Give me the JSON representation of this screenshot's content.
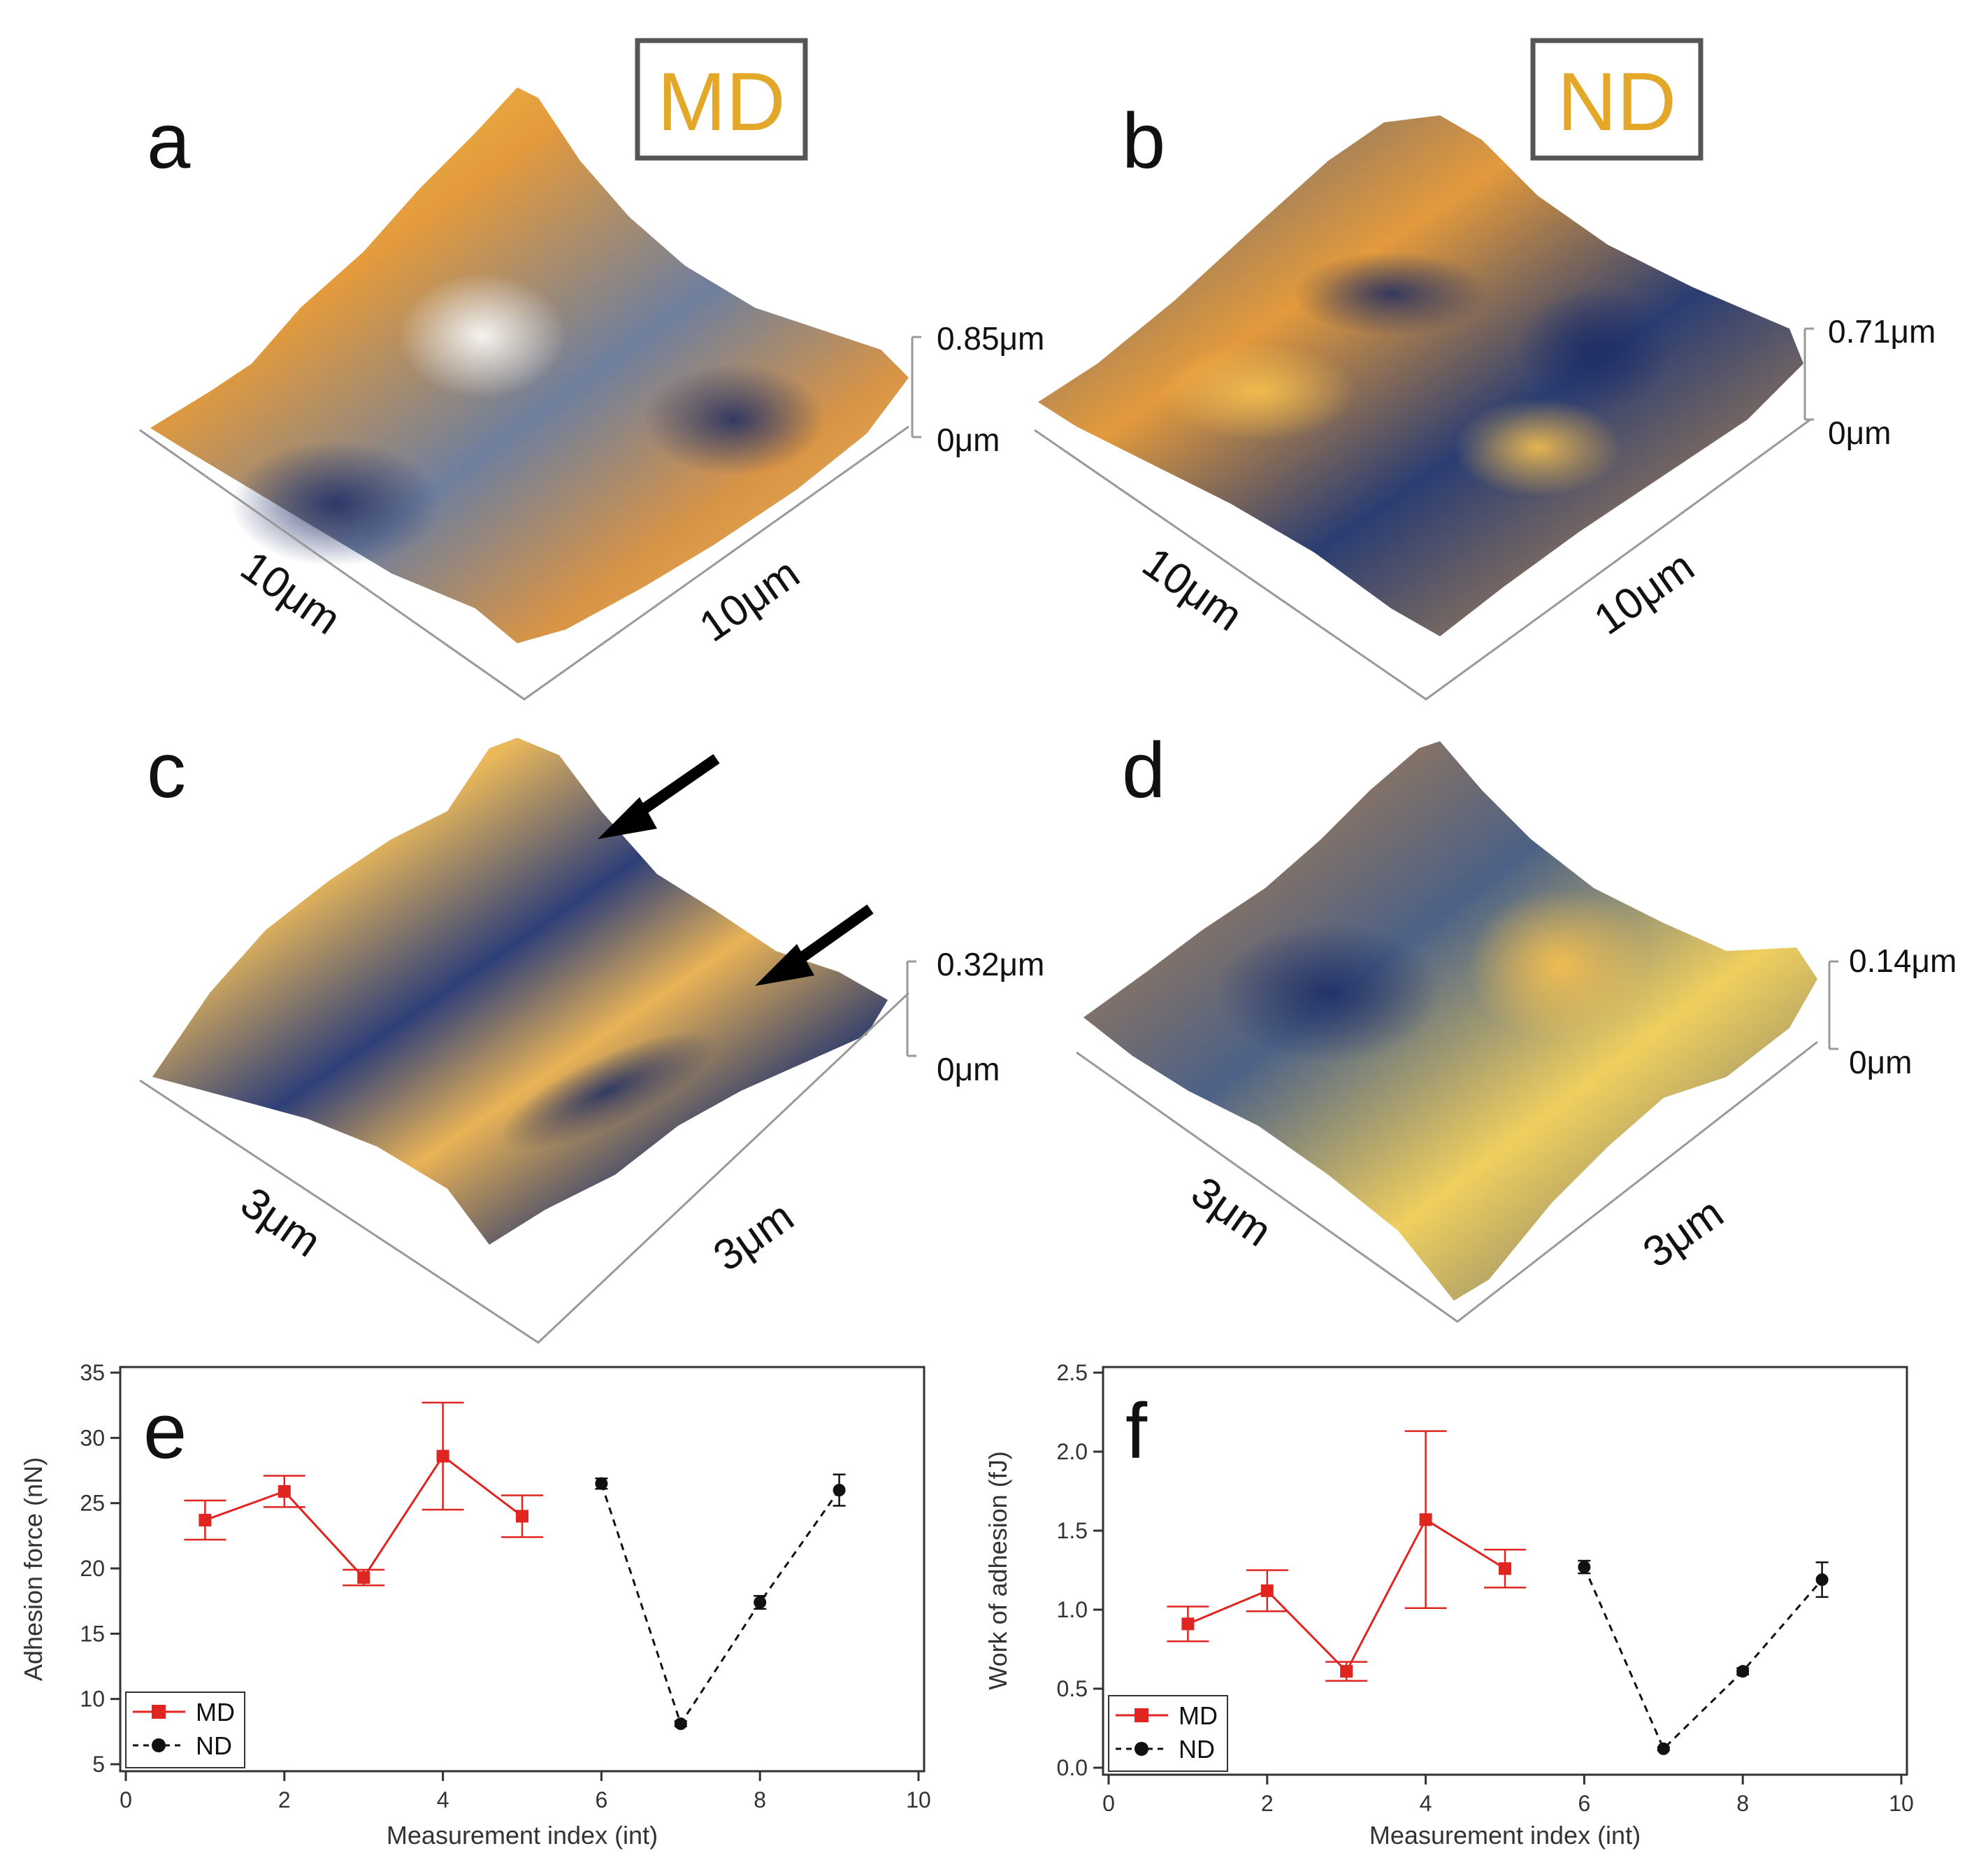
{
  "figure": {
    "panels_3d": [
      {
        "letter": "a",
        "tag": "MD",
        "z_max_label": "0.85μm",
        "z_min_label": "0μm",
        "dim_left": "10μm",
        "dim_right": "10μm"
      },
      {
        "letter": "b",
        "tag": "ND",
        "z_max_label": "0.71μm",
        "z_min_label": "0μm",
        "dim_left": "10μm",
        "dim_right": "10μm"
      },
      {
        "letter": "c",
        "tag": "",
        "z_max_label": "0.32μm",
        "z_min_label": "0μm",
        "dim_left": "3μm",
        "dim_right": "3μm"
      },
      {
        "letter": "d",
        "tag": "",
        "z_max_label": "0.14μm",
        "z_min_label": "0μm",
        "dim_left": "3μm",
        "dim_right": "3μm"
      }
    ]
  },
  "chart_data": [
    {
      "type": "scatter",
      "panel_letter": "e",
      "xlabel": "Measurement index (int)",
      "ylabel": "Adhesion force (nN)",
      "xlim": [
        0,
        10
      ],
      "ylim": [
        5,
        35
      ],
      "xticks": [
        0,
        2,
        4,
        6,
        8,
        10
      ],
      "yticks": [
        5,
        10,
        15,
        20,
        25,
        30,
        35
      ],
      "grid": false,
      "legend_position": "bottom-left",
      "series": [
        {
          "name": "MD",
          "color": "#e0241f",
          "marker": "square",
          "line": "solid",
          "x": [
            1,
            2,
            3,
            4,
            5
          ],
          "y": [
            23.7,
            25.9,
            19.3,
            28.6,
            24.0
          ],
          "err": [
            1.5,
            1.2,
            0.6,
            4.1,
            1.6
          ]
        },
        {
          "name": "ND",
          "color": "#111111",
          "marker": "circle",
          "line": "dashed",
          "x": [
            6,
            7,
            8,
            9
          ],
          "y": [
            26.5,
            8.1,
            17.4,
            26.0
          ],
          "err": [
            0.4,
            0.2,
            0.5,
            1.2
          ]
        }
      ]
    },
    {
      "type": "scatter",
      "panel_letter": "f",
      "xlabel": "Measurement index (int)",
      "ylabel": "Work of adhesion (fJ)",
      "xlim": [
        0,
        10
      ],
      "ylim": [
        0,
        2.5
      ],
      "xticks": [
        0,
        2,
        4,
        6,
        8,
        10
      ],
      "yticks": [
        0.0,
        0.5,
        1.0,
        1.5,
        2.0,
        2.5
      ],
      "ytick_labels": [
        "0.0",
        "0.5",
        "1.0",
        "1.5",
        "2.0",
        "2.5"
      ],
      "grid": false,
      "legend_position": "bottom-left",
      "series": [
        {
          "name": "MD",
          "color": "#e0241f",
          "marker": "square",
          "line": "solid",
          "x": [
            1,
            2,
            3,
            4,
            5
          ],
          "y": [
            0.91,
            1.12,
            0.61,
            1.57,
            1.26
          ],
          "err": [
            0.11,
            0.13,
            0.06,
            0.56,
            0.12
          ]
        },
        {
          "name": "ND",
          "color": "#111111",
          "marker": "circle",
          "line": "dashed",
          "x": [
            6,
            7,
            8,
            9
          ],
          "y": [
            1.27,
            0.12,
            0.61,
            1.19
          ],
          "err": [
            0.04,
            0.01,
            0.02,
            0.11
          ]
        }
      ]
    }
  ]
}
